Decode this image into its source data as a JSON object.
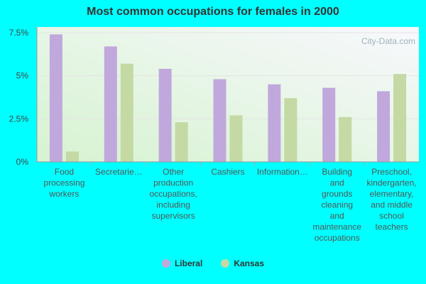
{
  "chart_data": {
    "type": "bar",
    "title": "Most common occupations for females in 2000",
    "categories": [
      [
        "Food",
        "processing",
        "workers"
      ],
      [
        "Secretarie…"
      ],
      [
        "Other",
        "production",
        "occupations,",
        "including",
        "supervisors"
      ],
      [
        "Cashiers"
      ],
      [
        "Information…"
      ],
      [
        "Building",
        "and",
        "grounds",
        "cleaning",
        "and",
        "maintenance",
        "occupations"
      ],
      [
        "Preschool,",
        "kindergarten,",
        "elementary,",
        "and middle",
        "school",
        "teachers"
      ]
    ],
    "series": [
      {
        "name": "Liberal",
        "color": "#c0a8dc",
        "values": [
          7.4,
          6.7,
          5.4,
          4.8,
          4.5,
          4.3,
          4.1
        ]
      },
      {
        "name": "Kansas",
        "color": "#c4d9a4",
        "values": [
          0.6,
          5.7,
          2.3,
          2.7,
          3.7,
          2.6,
          5.1
        ]
      }
    ],
    "ylim": [
      0,
      7.5
    ],
    "yticks": [
      "0%",
      "2.5%",
      "5%",
      "7.5%"
    ],
    "ytick_values": [
      0,
      2.5,
      5,
      7.5
    ],
    "legend_position": "bottom",
    "watermark": "City-Data.com"
  }
}
